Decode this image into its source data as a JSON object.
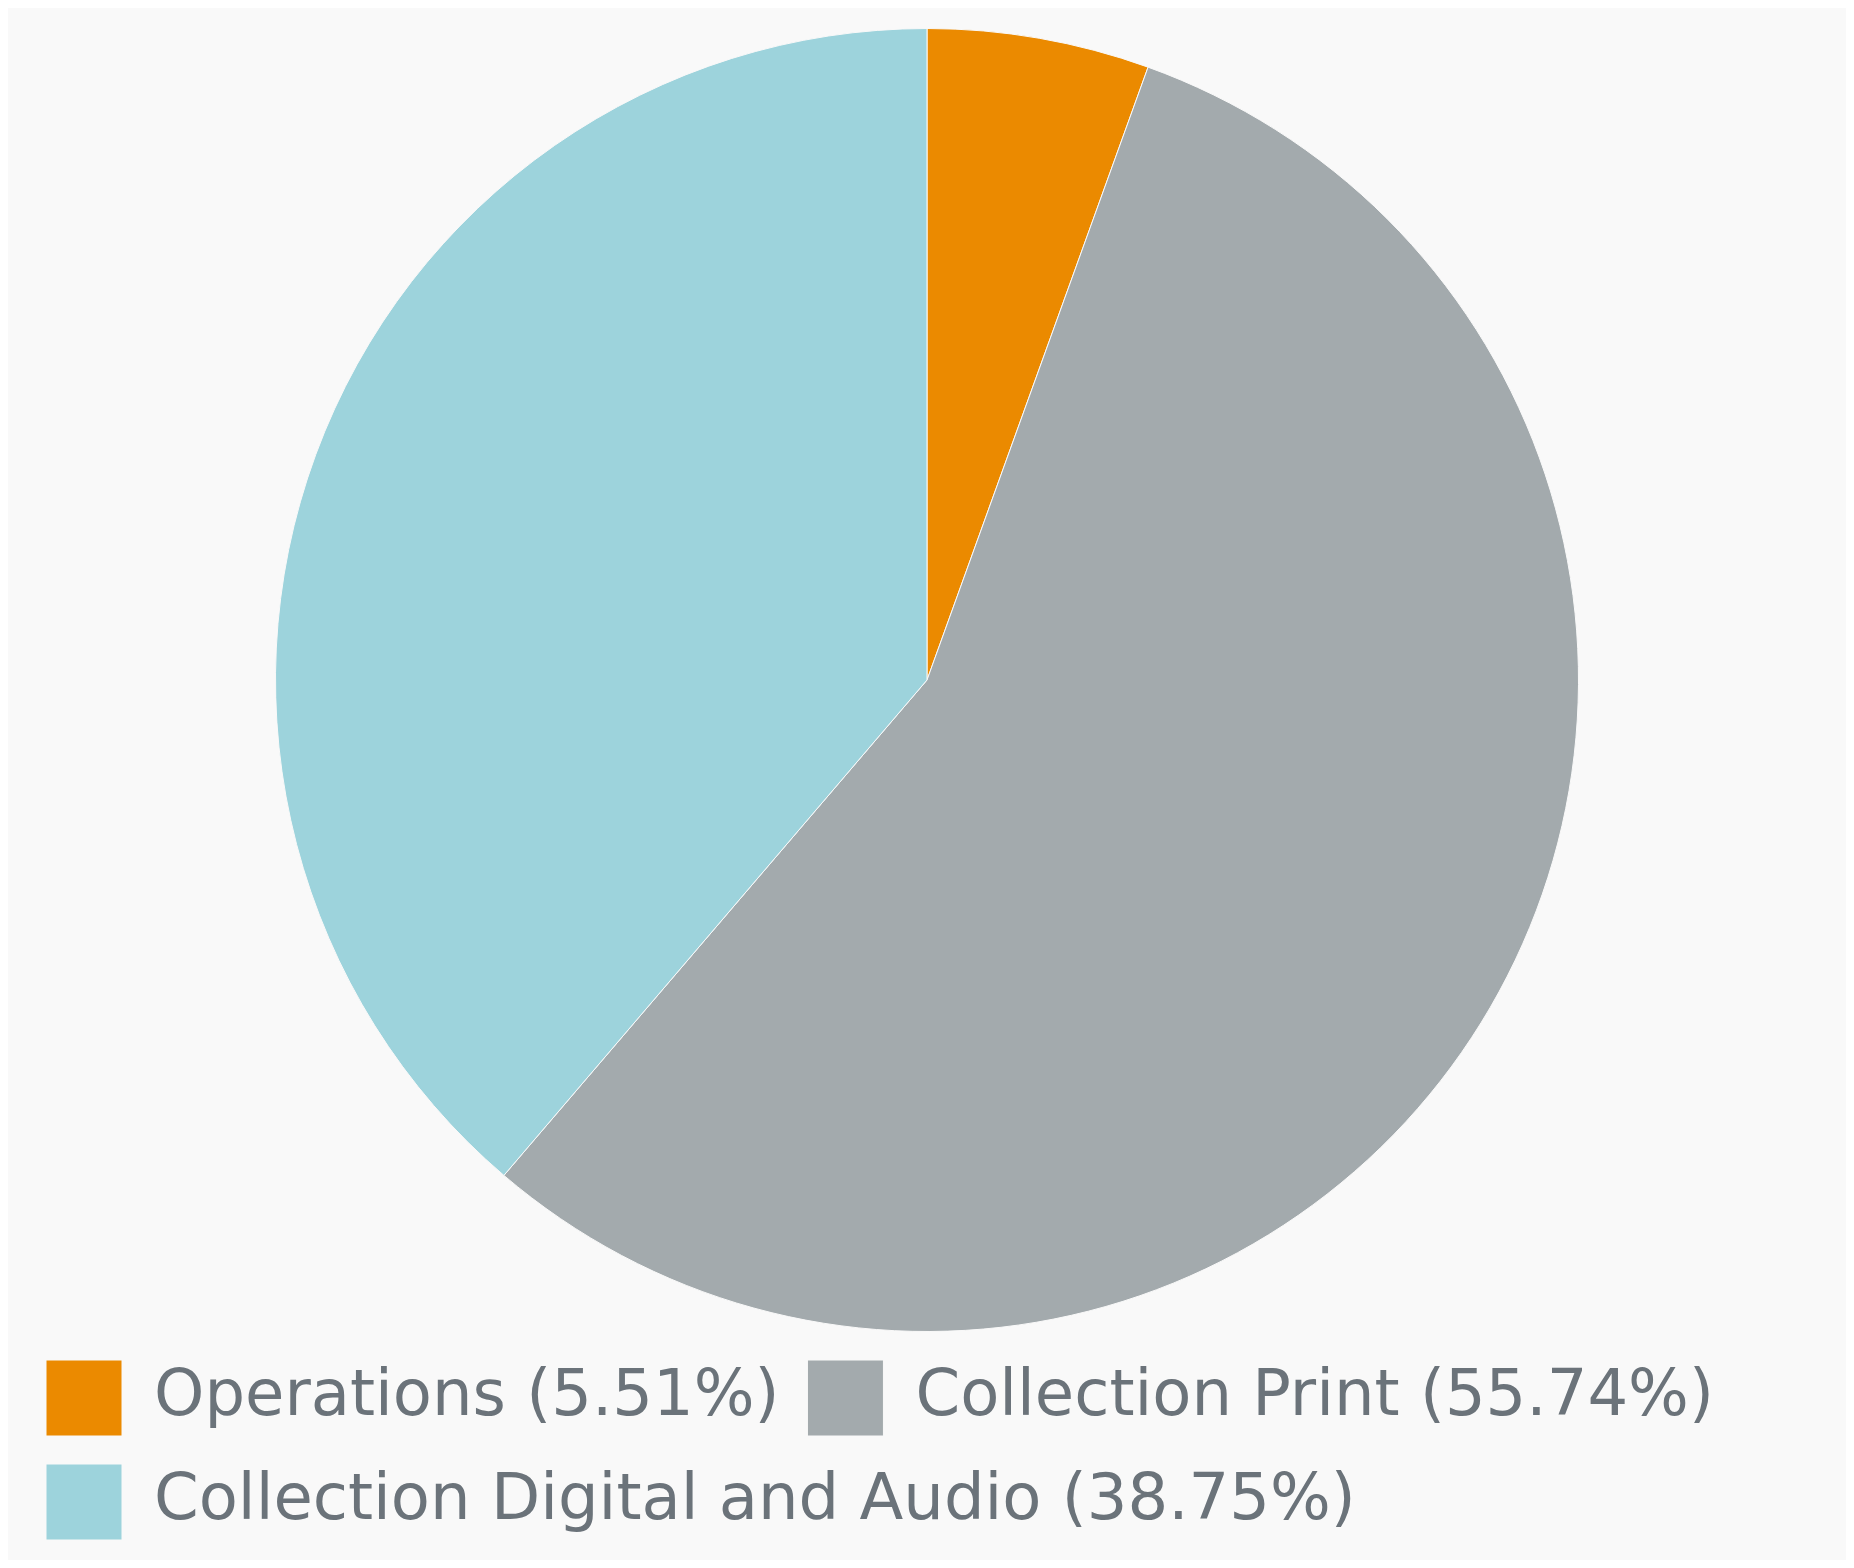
{
  "chart_data": {
    "type": "pie",
    "categories": [
      "Operations (5.51%)",
      "Collection Print (55.74%)",
      "Collection Digital and Audio (38.75%)"
    ],
    "values": [
      5.51,
      55.74,
      38.75
    ],
    "colors": [
      "#eb8a00",
      "#a3aaad",
      "#9dd3dc"
    ],
    "legend": "bottom"
  }
}
